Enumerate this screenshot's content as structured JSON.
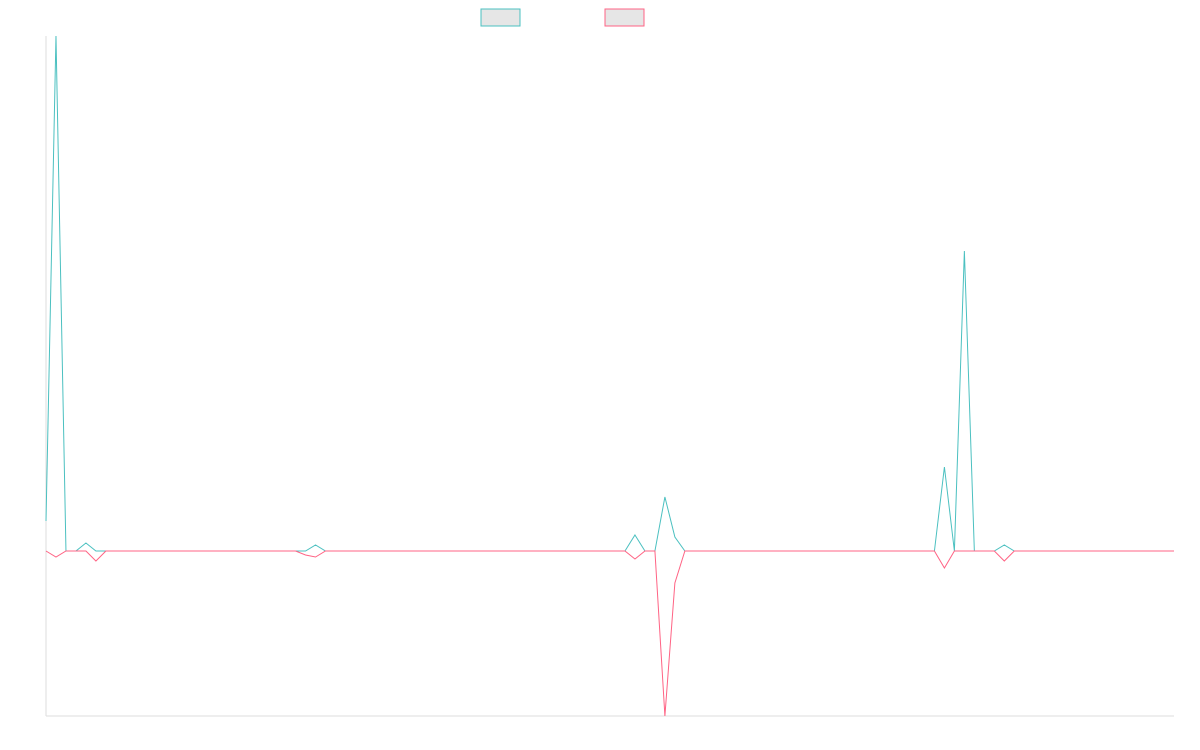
{
  "chart_data": {
    "type": "line",
    "title": "",
    "xlabel": "",
    "ylabel": "",
    "legend_position": "top-center",
    "grid": false,
    "ylim": [
      -165,
      515
    ],
    "x": [
      0,
      1,
      2,
      3,
      4,
      5,
      6,
      7,
      8,
      9,
      10,
      11,
      12,
      13,
      14,
      15,
      16,
      17,
      18,
      19,
      20,
      21,
      22,
      23,
      24,
      25,
      26,
      27,
      28,
      29,
      30,
      31,
      32,
      33,
      34,
      35,
      36,
      37,
      38,
      39,
      40,
      41,
      42,
      43,
      44,
      45,
      46,
      47,
      48,
      49,
      50,
      51,
      52,
      53,
      54,
      55,
      56,
      57,
      58,
      59,
      60,
      61,
      62,
      63,
      64,
      65,
      66,
      67,
      68,
      69,
      70,
      71,
      72,
      73,
      74,
      75,
      76,
      77,
      78,
      79,
      80,
      81,
      82,
      83,
      84,
      85,
      86,
      87,
      88,
      89,
      90,
      91,
      92,
      93,
      94,
      95,
      96,
      97,
      98,
      99,
      100,
      101,
      102,
      103,
      104,
      105,
      106,
      107,
      108,
      109,
      110,
      111,
      112,
      113
    ],
    "series": [
      {
        "name": "",
        "color": "#4bc0c0",
        "values": [
          30,
          515,
          0,
          0,
          8,
          0,
          0,
          0,
          0,
          0,
          0,
          0,
          0,
          0,
          0,
          0,
          0,
          0,
          0,
          0,
          0,
          0,
          0,
          0,
          0,
          0,
          0,
          6,
          0,
          0,
          0,
          0,
          0,
          0,
          0,
          0,
          0,
          0,
          0,
          0,
          0,
          0,
          0,
          0,
          0,
          0,
          0,
          0,
          0,
          0,
          0,
          0,
          0,
          0,
          0,
          0,
          0,
          0,
          0,
          16,
          0,
          0,
          54,
          14,
          0,
          0,
          0,
          0,
          0,
          0,
          0,
          0,
          0,
          0,
          0,
          0,
          0,
          0,
          0,
          0,
          0,
          0,
          0,
          0,
          0,
          0,
          0,
          0,
          0,
          0,
          84,
          0,
          300,
          0,
          0,
          0,
          6,
          0,
          0,
          0,
          0,
          0,
          0,
          0,
          0,
          0,
          0,
          0,
          0,
          0,
          0,
          0,
          0,
          0
        ]
      },
      {
        "name": "",
        "color": "#ff6384",
        "values": [
          0,
          -6,
          0,
          0,
          0,
          -10,
          0,
          0,
          0,
          0,
          0,
          0,
          0,
          0,
          0,
          0,
          0,
          0,
          0,
          0,
          0,
          0,
          0,
          0,
          0,
          0,
          -4,
          -6,
          0,
          0,
          0,
          0,
          0,
          0,
          0,
          0,
          0,
          0,
          0,
          0,
          0,
          0,
          0,
          0,
          0,
          0,
          0,
          0,
          0,
          0,
          0,
          0,
          0,
          0,
          0,
          0,
          0,
          0,
          0,
          -8,
          0,
          0,
          -165,
          -32,
          0,
          0,
          0,
          0,
          0,
          0,
          0,
          0,
          0,
          0,
          0,
          0,
          0,
          0,
          0,
          0,
          0,
          0,
          0,
          0,
          0,
          0,
          0,
          0,
          0,
          0,
          -17,
          0,
          0,
          0,
          0,
          0,
          -10,
          0,
          0,
          0,
          0,
          0,
          0,
          0,
          0,
          0,
          0,
          0,
          0,
          0,
          0,
          0,
          0,
          0
        ]
      }
    ]
  }
}
